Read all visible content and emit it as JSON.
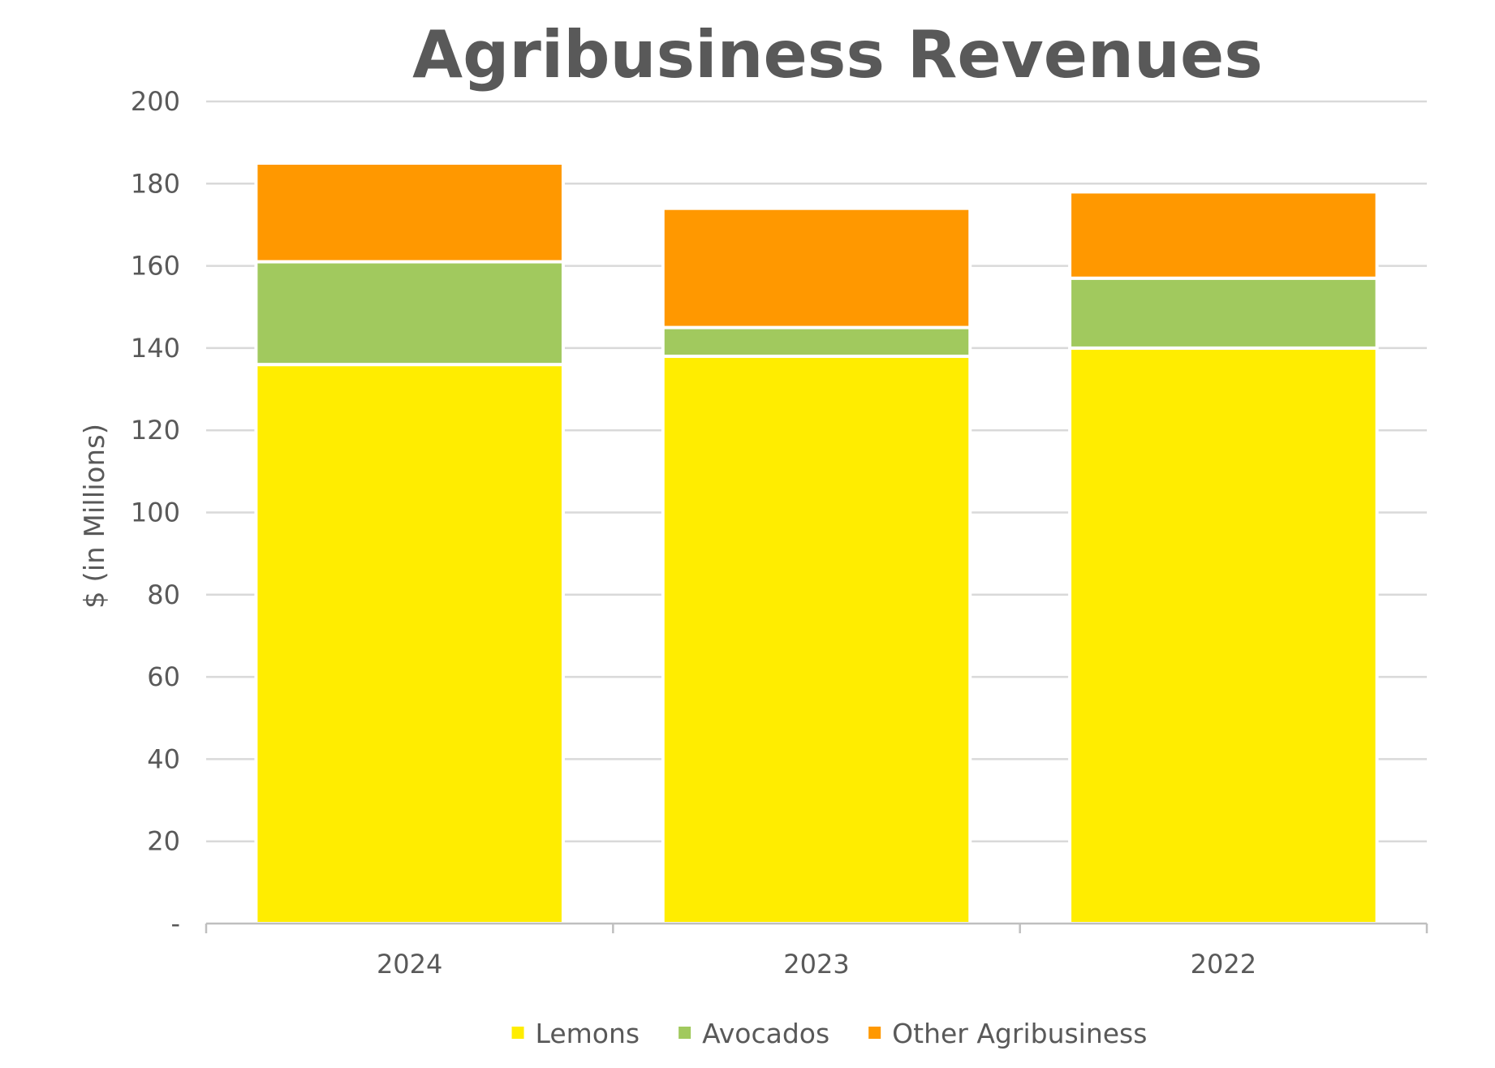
{
  "chart_data": {
    "type": "bar",
    "stacked": true,
    "title": "Agribusiness Revenues",
    "ylabel": "$ (in Millions)",
    "xlabel": "",
    "categories": [
      "2024",
      "2023",
      "2022"
    ],
    "series": [
      {
        "name": "Lemons",
        "color": "#ffed00",
        "values": [
          136,
          138,
          140
        ]
      },
      {
        "name": "Avocados",
        "color": "#a1c95e",
        "values": [
          25,
          7,
          17
        ]
      },
      {
        "name": "Other Agribusiness",
        "color": "#ff9800",
        "values": [
          24,
          29,
          21
        ]
      }
    ],
    "ylim": [
      0,
      200
    ],
    "yticks": [
      0,
      20,
      40,
      60,
      80,
      100,
      120,
      140,
      160,
      180,
      200
    ],
    "ytick_labels": [
      "-",
      "20",
      "40",
      "60",
      "80",
      "100",
      "120",
      "140",
      "160",
      "180",
      "200"
    ],
    "grid": true,
    "legend_position": "bottom"
  }
}
